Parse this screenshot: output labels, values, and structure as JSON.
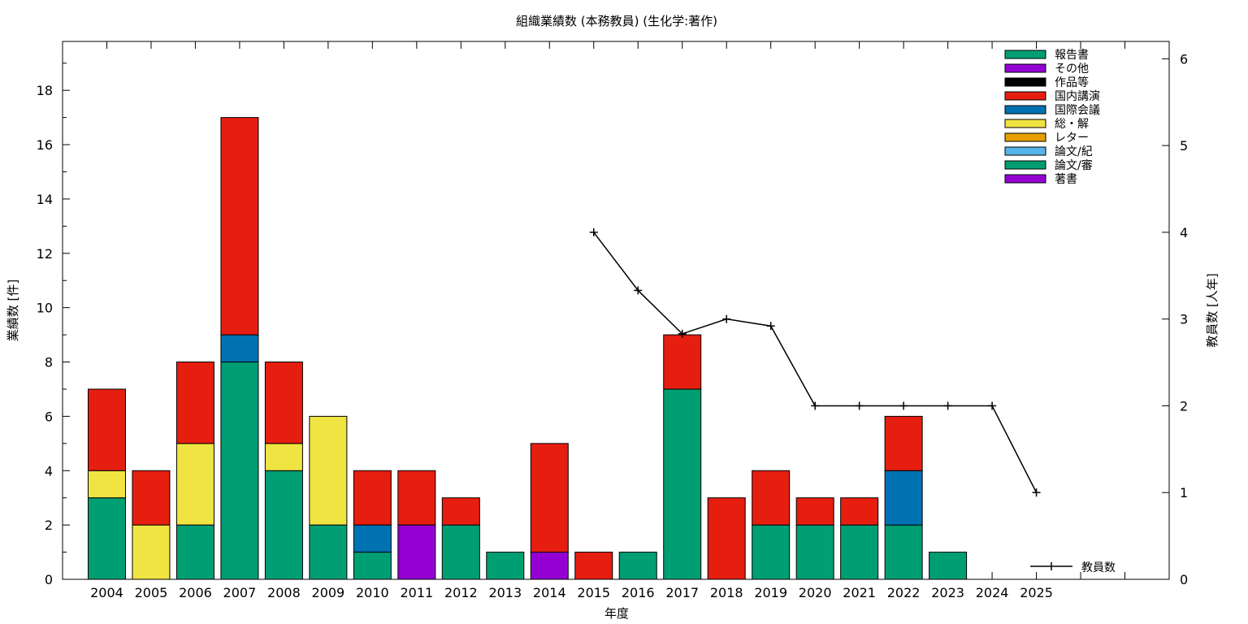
{
  "chart_data": {
    "type": "bar",
    "stacked": true,
    "title": "組織業績数 (本務教員) (生化学:著作)",
    "xlabel": "年度",
    "ylabel": "業績数 [件]",
    "y2label": "教員数 [人年]",
    "ylim": [
      0,
      19.8
    ],
    "y2lim": [
      0,
      6.2
    ],
    "yticks": [
      0,
      2,
      4,
      6,
      8,
      10,
      12,
      14,
      16,
      18
    ],
    "y2ticks": [
      0,
      1,
      2,
      3,
      4,
      5,
      6
    ],
    "xlim_slots": 25,
    "legend_position": "top-right",
    "categories": [
      "2004",
      "2005",
      "2006",
      "2007",
      "2008",
      "2009",
      "2010",
      "2011",
      "2012",
      "2013",
      "2014",
      "2015",
      "2016",
      "2017",
      "2018",
      "2019",
      "2020",
      "2021",
      "2022",
      "2023",
      "2024",
      "2025"
    ],
    "series": [
      {
        "name": "論文/審",
        "color": "#009e73",
        "values": [
          3,
          0,
          2,
          8,
          4,
          2,
          1,
          0,
          2,
          1,
          0,
          0,
          1,
          7,
          0,
          2,
          2,
          2,
          2,
          1,
          0,
          0
        ]
      },
      {
        "name": "総・解",
        "color": "#f0e442",
        "values": [
          1,
          2,
          3,
          0,
          1,
          4,
          0,
          0,
          0,
          0,
          0,
          0,
          0,
          0,
          0,
          0,
          0,
          0,
          0,
          0,
          0,
          0
        ]
      },
      {
        "name": "著書",
        "color": "#9400d3",
        "values": [
          0,
          0,
          0,
          0,
          0,
          0,
          0,
          2,
          0,
          0,
          1,
          0,
          0,
          0,
          0,
          0,
          0,
          0,
          0,
          0,
          0,
          0
        ]
      },
      {
        "name": "国際会議",
        "color": "#0072b2",
        "values": [
          0,
          0,
          0,
          1,
          0,
          0,
          1,
          0,
          0,
          0,
          0,
          0,
          0,
          0,
          0,
          0,
          0,
          0,
          2,
          0,
          0,
          0
        ]
      },
      {
        "name": "国内講演",
        "color": "#e51e10",
        "values": [
          3,
          2,
          3,
          8,
          3,
          0,
          2,
          2,
          1,
          0,
          4,
          1,
          0,
          2,
          3,
          2,
          1,
          1,
          2,
          0,
          0,
          0
        ]
      }
    ],
    "legend_entries": [
      {
        "name": "報告書",
        "color": "#009e73"
      },
      {
        "name": "その他",
        "color": "#9400d3"
      },
      {
        "name": "作品等",
        "color": "#000000"
      },
      {
        "name": "国内講演",
        "color": "#e51e10"
      },
      {
        "name": "国際会議",
        "color": "#0072b2"
      },
      {
        "name": "総・解",
        "color": "#f0e442"
      },
      {
        "name": "レター",
        "color": "#e69f00"
      },
      {
        "name": "論文/紀",
        "color": "#56b4e9"
      },
      {
        "name": "論文/審",
        "color": "#009e73"
      },
      {
        "name": "著書",
        "color": "#9400d3"
      }
    ],
    "line_series": {
      "name": "教員数",
      "axis": "y2",
      "color": "#000000",
      "points": [
        {
          "x": "2015",
          "y": 4.0
        },
        {
          "x": "2016",
          "y": 3.33
        },
        {
          "x": "2017",
          "y": 2.83
        },
        {
          "x": "2018",
          "y": 3.0
        },
        {
          "x": "2019",
          "y": 2.92
        },
        {
          "x": "2020",
          "y": 2.0
        },
        {
          "x": "2021",
          "y": 2.0
        },
        {
          "x": "2022",
          "y": 2.0
        },
        {
          "x": "2023",
          "y": 2.0
        },
        {
          "x": "2024",
          "y": 2.0
        },
        {
          "x": "2025",
          "y": 1.0
        }
      ]
    }
  }
}
